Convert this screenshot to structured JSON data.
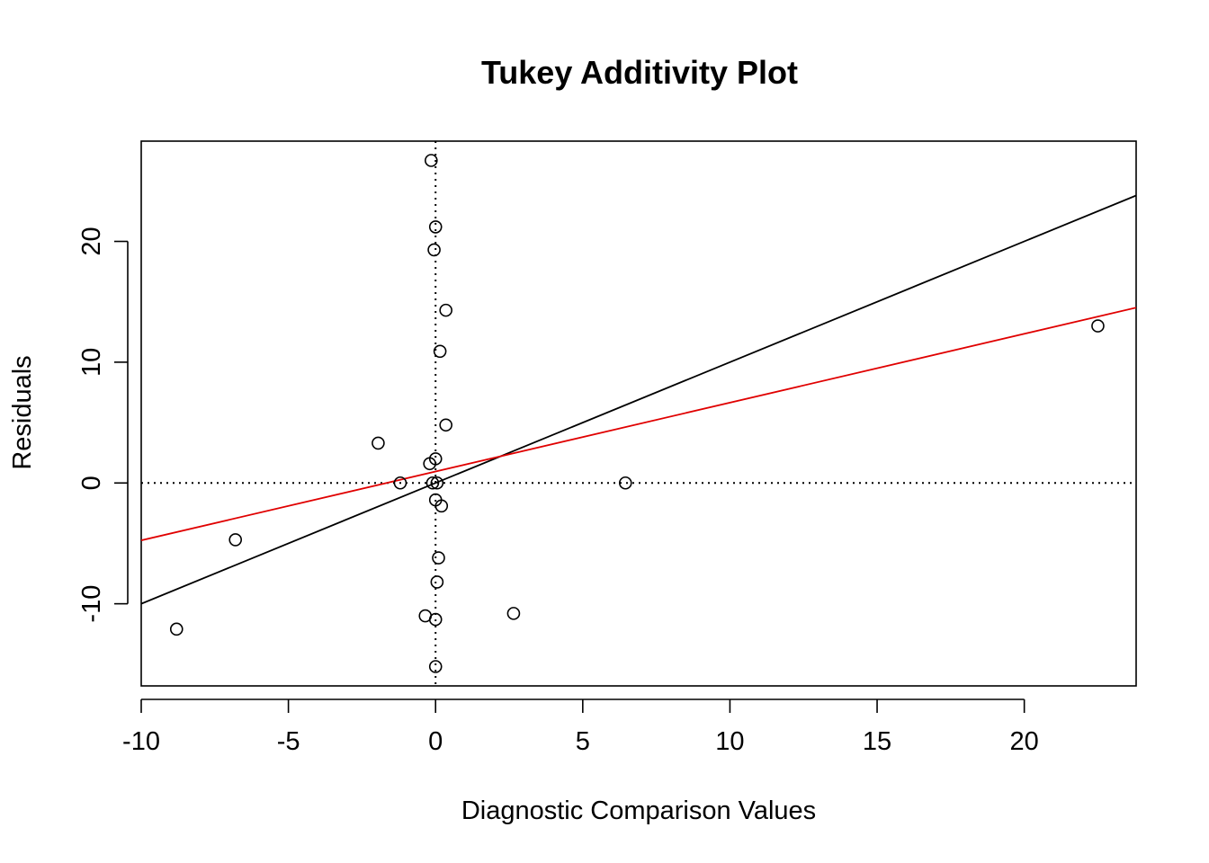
{
  "chart_data": {
    "type": "scatter",
    "title": "Tukey Additivity Plot",
    "xlabel": "Diagnostic Comparison Values",
    "ylabel": "Residuals",
    "xlim": [
      -10,
      23.8
    ],
    "ylim": [
      -16.8,
      28.3
    ],
    "xticks": [
      -10,
      -5,
      0,
      5,
      10,
      15,
      20
    ],
    "yticks": [
      -10,
      0,
      10,
      20
    ],
    "xtick_labels": [
      "-10",
      "-5",
      "0",
      "5",
      "10",
      "15",
      "20"
    ],
    "ytick_labels": [
      "-10",
      "0",
      "10",
      "20"
    ],
    "grid": false,
    "points": [
      {
        "x": -0.15,
        "y": 26.7
      },
      {
        "x": 0.0,
        "y": 21.2
      },
      {
        "x": -0.05,
        "y": 19.3
      },
      {
        "x": 0.35,
        "y": 14.3
      },
      {
        "x": 0.15,
        "y": 10.9
      },
      {
        "x": 0.35,
        "y": 4.8
      },
      {
        "x": -1.95,
        "y": 3.3
      },
      {
        "x": 0.0,
        "y": 2.0
      },
      {
        "x": -0.2,
        "y": 1.6
      },
      {
        "x": -1.2,
        "y": 0.0
      },
      {
        "x": -0.1,
        "y": 0.0
      },
      {
        "x": 0.05,
        "y": 0.0
      },
      {
        "x": 6.45,
        "y": 0.0
      },
      {
        "x": 0.0,
        "y": -1.4
      },
      {
        "x": 0.2,
        "y": -1.9
      },
      {
        "x": -6.8,
        "y": -4.7
      },
      {
        "x": 0.1,
        "y": -6.2
      },
      {
        "x": 0.05,
        "y": -8.2
      },
      {
        "x": -0.35,
        "y": -11.0
      },
      {
        "x": 0.0,
        "y": -11.3
      },
      {
        "x": 2.65,
        "y": -10.8
      },
      {
        "x": -8.8,
        "y": -12.1
      },
      {
        "x": 0.0,
        "y": -15.2
      },
      {
        "x": 22.5,
        "y": 13.0
      }
    ],
    "reference_lines": [
      {
        "kind": "vertical",
        "x": 0,
        "style": "dotted",
        "color": "#000000"
      },
      {
        "kind": "horizontal",
        "y": 0,
        "style": "dotted",
        "color": "#000000"
      }
    ],
    "fit_lines": [
      {
        "intercept": 0.0,
        "slope": 1.0,
        "color": "#000000"
      },
      {
        "intercept": 0.95,
        "slope": 0.57,
        "color": "#e00000"
      }
    ]
  }
}
